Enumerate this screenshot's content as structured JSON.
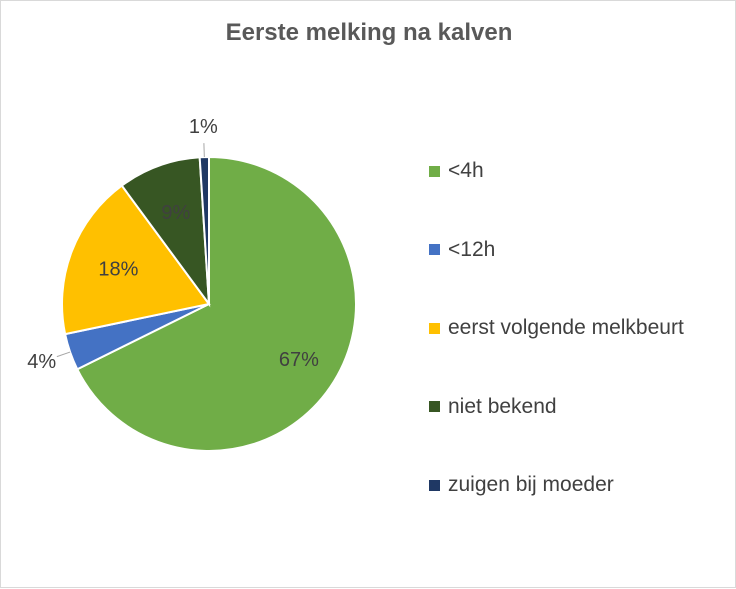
{
  "chart_data": {
    "type": "pie",
    "title": "Eerste melking na kalven",
    "categories": [
      "<4h",
      "<12h",
      "eerst volgende melkbeurt",
      "niet bekend",
      "zuigen bij moeder"
    ],
    "values": [
      67,
      4,
      18,
      9,
      1
    ],
    "labels": [
      "67%",
      "4%",
      "18%",
      "9%",
      "1%"
    ],
    "colors": [
      "#70ad47",
      "#4472c4",
      "#ffc000",
      "#375623",
      "#1f3864"
    ],
    "legend": "right"
  }
}
